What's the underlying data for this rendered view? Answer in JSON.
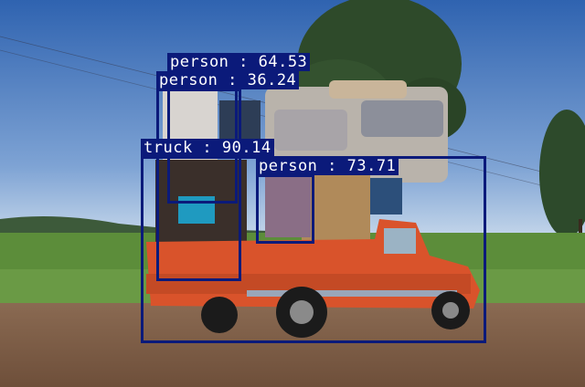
{
  "photo": {
    "description_colors": {
      "sky_top": "#3c6fb8",
      "sky_bottom": "#a9c3e0",
      "grass": "#5f8f3a",
      "road": "#7a5a44",
      "truck": "#d9532b",
      "box": "#0b1a7a"
    }
  },
  "detections": [
    {
      "label": "person",
      "score": "64.53",
      "text": "person : 64.53"
    },
    {
      "label": "person",
      "score": "36.24",
      "text": "person : 36.24"
    },
    {
      "label": "truck",
      "score": "90.14",
      "text": "truck : 90.14"
    },
    {
      "label": "person",
      "score": "73.71",
      "text": "person : 73.71"
    }
  ]
}
